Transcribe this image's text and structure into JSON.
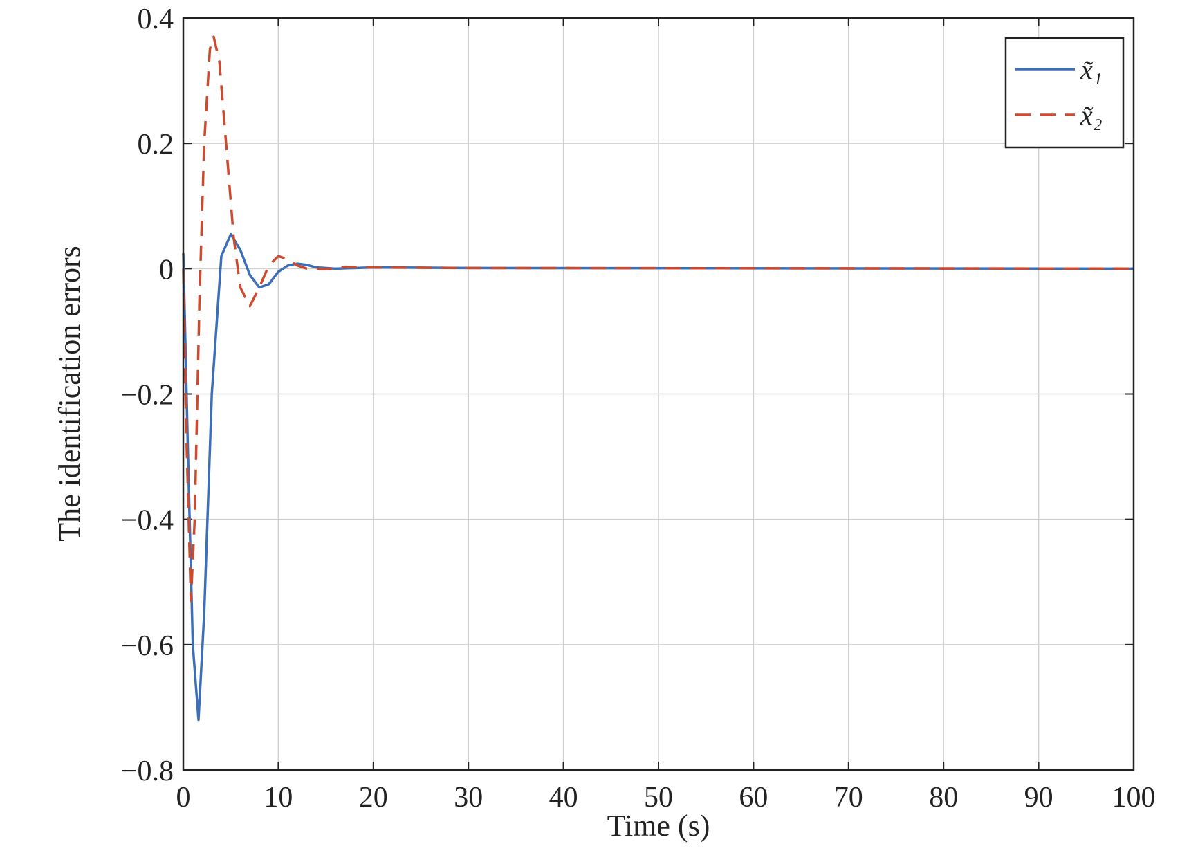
{
  "chart_data": {
    "type": "line",
    "x_label": "Time (s)",
    "y_label": "The identification errors",
    "xlim": [
      0,
      100
    ],
    "ylim": [
      -0.8,
      0.4
    ],
    "xticks": [
      0,
      10,
      20,
      30,
      40,
      50,
      60,
      70,
      80,
      90,
      100
    ],
    "yticks": [
      {
        "value": -0.8,
        "label": "−0.8"
      },
      {
        "value": -0.6,
        "label": "−0.6"
      },
      {
        "value": -0.4,
        "label": "−0.4"
      },
      {
        "value": -0.2,
        "label": "−0.2"
      },
      0,
      0.2,
      0.4
    ],
    "grid": true,
    "legend": "upper right",
    "series": [
      {
        "name": "x̃₁",
        "color": "#3d6eb8",
        "dash": "solid",
        "x": [
          0,
          0.5,
          1.0,
          1.6,
          2.2,
          3,
          4,
          5,
          6,
          7,
          8,
          9,
          10,
          11,
          12,
          13,
          14,
          16,
          20,
          30,
          100
        ],
        "values": [
          0.025,
          -0.3,
          -0.6,
          -0.72,
          -0.55,
          -0.2,
          0.02,
          0.055,
          0.03,
          -0.01,
          -0.03,
          -0.025,
          -0.005,
          0.005,
          0.008,
          0.006,
          0.002,
          0,
          0.002,
          0.001,
          0
        ]
      },
      {
        "name": "x̃₂",
        "color": "#cc4b2e",
        "dash": "dashed",
        "x": [
          0,
          0.3,
          0.8,
          1.2,
          1.7,
          2.2,
          2.8,
          3.2,
          3.8,
          4.5,
          5.3,
          6,
          7,
          8,
          9,
          10,
          11,
          12,
          13,
          15,
          17,
          20,
          30,
          100
        ],
        "values": [
          0,
          -0.25,
          -0.53,
          -0.4,
          -0.05,
          0.2,
          0.35,
          0.37,
          0.33,
          0.2,
          0.05,
          -0.03,
          -0.06,
          -0.03,
          0.005,
          0.02,
          0.015,
          0.005,
          0,
          -0.001,
          0.003,
          0.002,
          0.001,
          0
        ]
      }
    ]
  }
}
